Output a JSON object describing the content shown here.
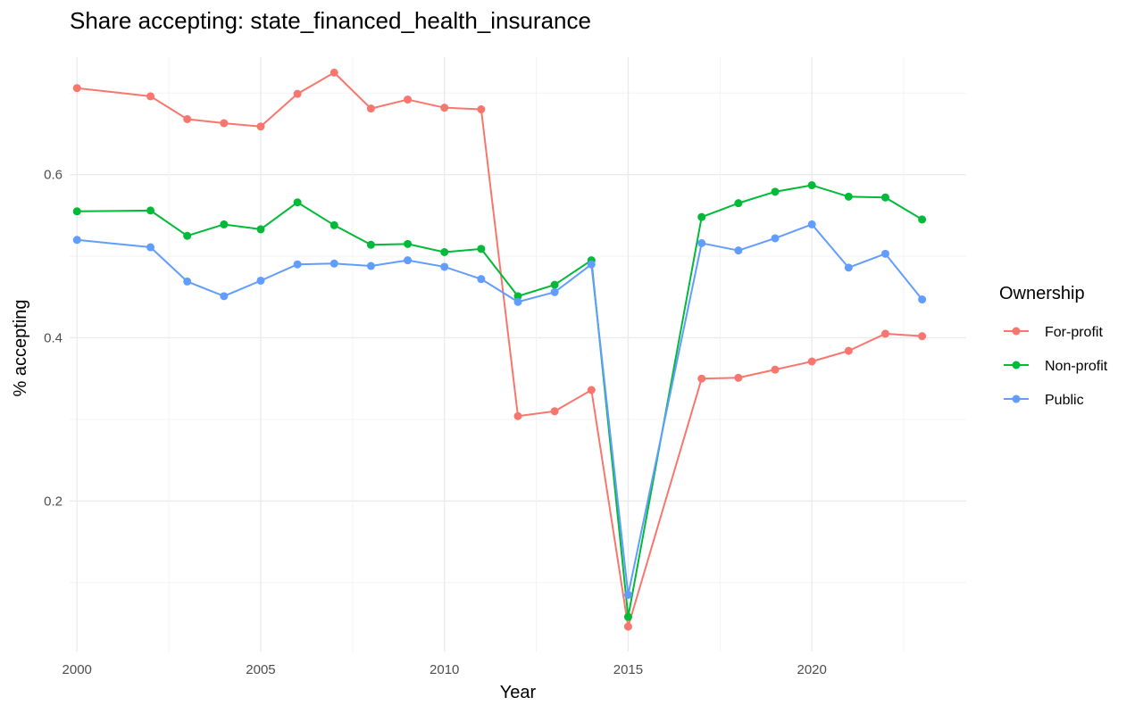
{
  "chart_data": {
    "type": "line",
    "title": "Share accepting: state_financed_health_insurance",
    "xlabel": "Year",
    "ylabel": "% accepting",
    "xlim": [
      1999.8,
      2024.2
    ],
    "ylim": [
      0.0155,
      0.744
    ],
    "x_ticks": [
      2000,
      2005,
      2010,
      2015,
      2020
    ],
    "y_ticks": [
      0.2,
      0.4,
      0.6
    ],
    "grid": true,
    "legend": {
      "title": "Ownership",
      "position": "right"
    },
    "series": [
      {
        "name": "For-profit",
        "color": "#F8766D",
        "x": [
          2000,
          2002,
          2003,
          2004,
          2005,
          2006,
          2007,
          2008,
          2009,
          2010,
          2011,
          2012,
          2013,
          2014,
          2015,
          2017,
          2018,
          2019,
          2020,
          2021,
          2022,
          2023
        ],
        "y": [
          0.706,
          0.696,
          0.668,
          0.663,
          0.659,
          0.699,
          0.725,
          0.681,
          0.692,
          0.682,
          0.68,
          0.304,
          0.31,
          0.336,
          0.046,
          0.35,
          0.351,
          0.361,
          0.371,
          0.384,
          0.405,
          0.402
        ]
      },
      {
        "name": "Non-profit",
        "color": "#00BA38",
        "x": [
          2000,
          2002,
          2003,
          2004,
          2005,
          2006,
          2007,
          2008,
          2009,
          2010,
          2011,
          2012,
          2013,
          2014,
          2015,
          2017,
          2018,
          2019,
          2020,
          2021,
          2022,
          2023
        ],
        "y": [
          0.555,
          0.556,
          0.525,
          0.539,
          0.533,
          0.566,
          0.538,
          0.514,
          0.515,
          0.505,
          0.509,
          0.451,
          0.465,
          0.495,
          0.058,
          0.548,
          0.565,
          0.579,
          0.587,
          0.573,
          0.572,
          0.545
        ]
      },
      {
        "name": "Public",
        "color": "#619CFF",
        "x": [
          2000,
          2002,
          2003,
          2004,
          2005,
          2006,
          2007,
          2008,
          2009,
          2010,
          2011,
          2012,
          2013,
          2014,
          2015,
          2017,
          2018,
          2019,
          2020,
          2021,
          2022,
          2023
        ],
        "y": [
          0.52,
          0.511,
          0.469,
          0.451,
          0.47,
          0.49,
          0.491,
          0.488,
          0.495,
          0.487,
          0.472,
          0.444,
          0.456,
          0.49,
          0.085,
          0.516,
          0.507,
          0.522,
          0.539,
          0.486,
          0.503,
          0.447
        ]
      }
    ]
  }
}
